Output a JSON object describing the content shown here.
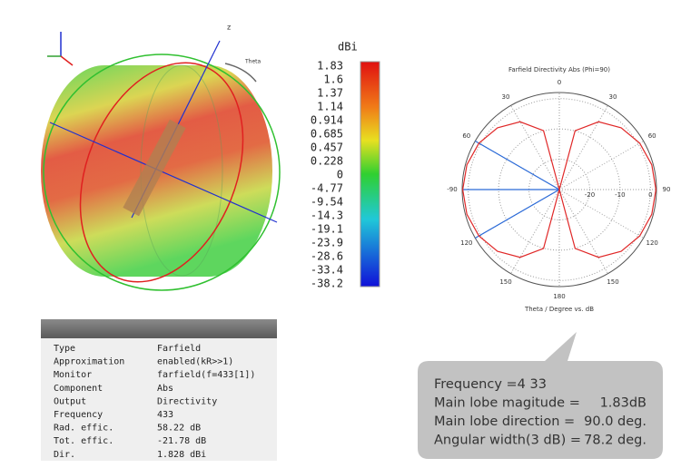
{
  "pattern3d": {
    "axis_z": "z",
    "axis_theta": "Theta"
  },
  "colorbar": {
    "unit": "dBi",
    "labels": [
      "1.83",
      "1.6",
      "1.37",
      "1.14",
      "0.914",
      "0.685",
      "0.457",
      "0.228",
      "0",
      "-4.77",
      "-9.54",
      "-14.3",
      "-19.1",
      "-23.9",
      "-28.6",
      "-33.4",
      "-38.2"
    ]
  },
  "chart_data": {
    "type": "polar",
    "title": "Farfield Directivity Abs (Phi=90)",
    "x_label": "Theta / Degree vs. dB",
    "x": [
      0,
      15,
      30,
      45,
      60,
      75,
      90,
      105,
      120,
      135,
      150,
      165,
      180,
      195,
      210,
      225,
      240,
      255,
      270,
      285,
      300,
      315,
      330,
      345,
      360
    ],
    "series": [
      {
        "color": "#e02828",
        "values": [
          -30,
          -9.91,
          -4.19,
          -1.18,
          0.58,
          1.53,
          1.83,
          1.53,
          0.58,
          -1.18,
          -4.19,
          -9.91,
          -30,
          -9.91,
          -4.19,
          -1.18,
          0.58,
          1.53,
          1.83,
          1.53,
          0.58,
          -1.18,
          -4.19,
          -9.91,
          -30
        ]
      }
    ],
    "xticks": [
      0,
      30,
      60,
      90,
      120,
      150,
      180,
      {
        "value": 210,
        "label": "150"
      },
      {
        "value": 240,
        "label": "120"
      },
      {
        "value": 270,
        "label": "-90"
      },
      {
        "value": 300,
        "label": "60"
      },
      {
        "value": 330,
        "label": "30"
      }
    ],
    "ylim": [
      -30,
      2
    ],
    "yticks": [
      -20,
      -10,
      0
    ]
  },
  "info_table": {
    "rows": [
      [
        "Type",
        "Farfield"
      ],
      [
        "Approximation",
        "enabled(kR>>1)"
      ],
      [
        "Monitor",
        "farfield(f=433[1])"
      ],
      [
        "Component",
        "Abs"
      ],
      [
        "Output",
        "Directivity"
      ],
      [
        "Frequency",
        "433"
      ],
      [
        "Rad. effic.",
        "58.22 dB"
      ],
      [
        "Tot. effic.",
        "-21.78 dB"
      ],
      [
        "Dir.",
        "1.828 dBi"
      ]
    ]
  },
  "callout": {
    "lines": [
      {
        "label": "Frequency =4 33"
      },
      {
        "label": "Main lobe magitude =",
        "value": "1.83dB"
      },
      {
        "label": "Main lobe direction =",
        "value": "90.0 deg."
      },
      {
        "label": "Angular width(3 dB) =",
        "value": "78.2 deg."
      }
    ]
  }
}
